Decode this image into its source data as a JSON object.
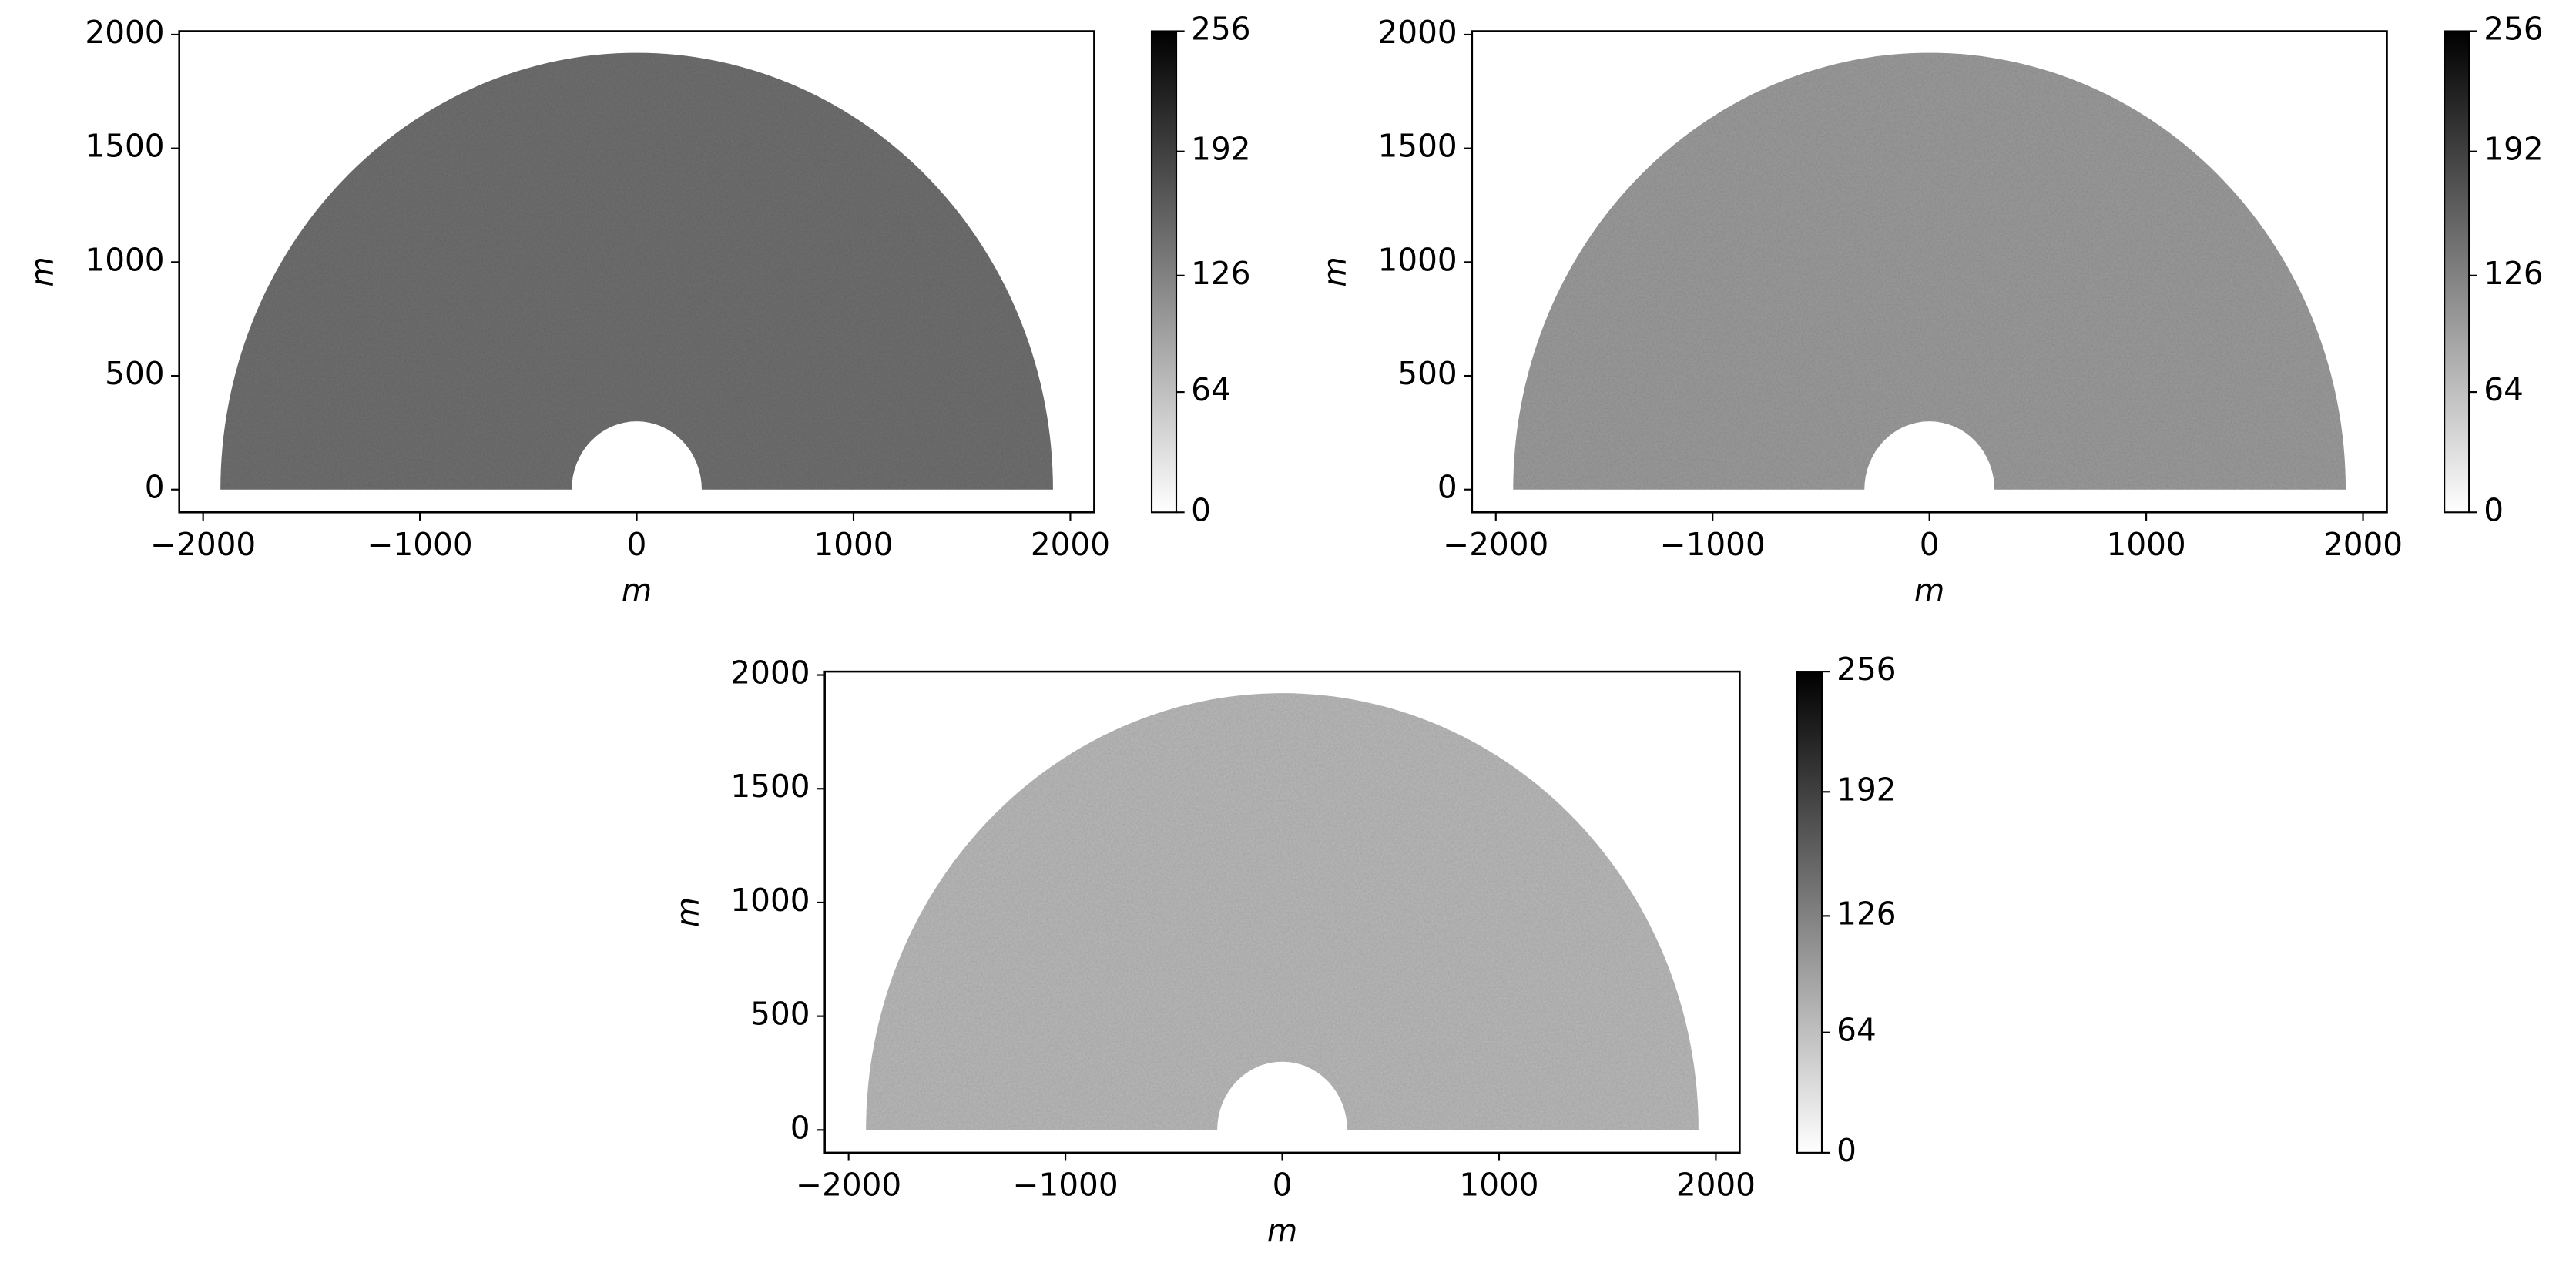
{
  "chart_data": [
    {
      "type": "image",
      "xlabel": "m",
      "ylabel": "m",
      "xlim": [
        -2110,
        2110
      ],
      "ylim": [
        -100,
        2015
      ],
      "xticks": [
        {
          "value": -2000,
          "label": "−2000"
        },
        {
          "value": -1000,
          "label": "−1000"
        },
        0,
        1000,
        2000
      ],
      "yticks": [
        0,
        500,
        1000,
        1500,
        2000
      ],
      "ring": {
        "inner": 300,
        "outer": 1920
      },
      "color": "#6f6f6f",
      "clim": [
        0,
        256
      ],
      "cticks": [
        0,
        64,
        126,
        192,
        256
      ],
      "cmap": [
        "#ffffff",
        "#000000"
      ]
    },
    {
      "type": "image",
      "xlabel": "m",
      "ylabel": "m",
      "xlim": [
        -2110,
        2110
      ],
      "ylim": [
        -100,
        2015
      ],
      "xticks": [
        {
          "value": -2000,
          "label": "−2000"
        },
        {
          "value": -1000,
          "label": "−1000"
        },
        0,
        1000,
        2000
      ],
      "yticks": [
        0,
        500,
        1000,
        1500,
        2000
      ],
      "ring": {
        "inner": 300,
        "outer": 1920
      },
      "color": "#9b9b9b",
      "clim": [
        0,
        256
      ],
      "cticks": [
        0,
        64,
        126,
        192,
        256
      ],
      "cmap": [
        "#ffffff",
        "#000000"
      ]
    },
    {
      "type": "image",
      "xlabel": "m",
      "ylabel": "m",
      "xlim": [
        -2110,
        2110
      ],
      "ylim": [
        -100,
        2015
      ],
      "xticks": [
        {
          "value": -2000,
          "label": "−2000"
        },
        {
          "value": -1000,
          "label": "−1000"
        },
        0,
        1000,
        2000
      ],
      "yticks": [
        0,
        500,
        1000,
        1500,
        2000
      ],
      "ring": {
        "inner": 300,
        "outer": 1920
      },
      "color": "#b9b9b9",
      "clim": [
        0,
        256
      ],
      "cticks": [
        0,
        64,
        126,
        192,
        256
      ],
      "cmap": [
        "#ffffff",
        "#000000"
      ]
    }
  ]
}
